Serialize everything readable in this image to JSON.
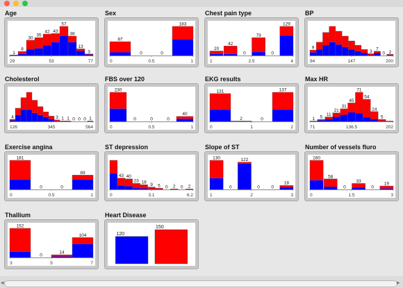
{
  "window": {
    "buttons": [
      {
        "name": "close",
        "color": "#ff5f57"
      },
      {
        "name": "minimize",
        "color": "#febc2e"
      },
      {
        "name": "zoom",
        "color": "#28c840"
      }
    ]
  },
  "colors": {
    "red": "#ff0000",
    "blue": "#0000ff",
    "axis": "#888888",
    "panel": "#c8c8c8"
  },
  "chart_data": [
    {
      "type": "bar",
      "title": "Age",
      "ticks": [
        "29",
        "53",
        "77"
      ],
      "bins": [
        {
          "label": "1",
          "total": 1,
          "blue": 1
        },
        {
          "label": "8",
          "total": 8,
          "blue": 3
        },
        {
          "label": "30",
          "total": 30,
          "blue": 12
        },
        {
          "label": "35",
          "total": 35,
          "blue": 14
        },
        {
          "label": "42",
          "total": 42,
          "blue": 20
        },
        {
          "label": "43",
          "total": 43,
          "blue": 26
        },
        {
          "label": "57",
          "total": 57,
          "blue": 38
        },
        {
          "label": "38",
          "total": 38,
          "blue": 26
        },
        {
          "label": "13",
          "total": 13,
          "blue": 9
        },
        {
          "label": "3",
          "total": 3,
          "blue": 2
        }
      ]
    },
    {
      "type": "bar",
      "title": "Sex",
      "ticks": [
        "0",
        "0.5",
        "1"
      ],
      "bins": [
        {
          "label": "87",
          "total": 87,
          "blue": 20
        },
        {
          "label": "0",
          "total": 0,
          "blue": 0
        },
        {
          "label": "0",
          "total": 0,
          "blue": 0
        },
        {
          "label": "183",
          "total": 183,
          "blue": 100
        }
      ],
      "barWidthFrac": 0.25
    },
    {
      "type": "bar",
      "title": "Chest pain type",
      "ticks": [
        "1",
        "2.5",
        "4"
      ],
      "bins": [
        {
          "label": "20",
          "total": 20,
          "blue": 7
        },
        {
          "label": "42",
          "total": 42,
          "blue": 7
        },
        {
          "label": "0",
          "total": 0,
          "blue": 0
        },
        {
          "label": "79",
          "total": 79,
          "blue": 15
        },
        {
          "label": "0",
          "total": 0,
          "blue": 0
        },
        {
          "label": "129",
          "total": 129,
          "blue": 88
        }
      ],
      "barWidthFrac": 0.16
    },
    {
      "type": "bar",
      "title": "BP",
      "ticks": [
        "94",
        "147",
        "200"
      ],
      "bins": [
        {
          "label": "9",
          "total": 9,
          "blue": 5
        },
        {
          "label": "",
          "total": 22,
          "blue": 10
        },
        {
          "label": "",
          "total": 38,
          "blue": 17
        },
        {
          "label": "",
          "total": 48,
          "blue": 22
        },
        {
          "label": "",
          "total": 40,
          "blue": 18
        },
        {
          "label": "",
          "total": 32,
          "blue": 14
        },
        {
          "label": "",
          "total": 24,
          "blue": 10
        },
        {
          "label": "",
          "total": 17,
          "blue": 7
        },
        {
          "label": "",
          "total": 10,
          "blue": 4
        },
        {
          "label": "3",
          "total": 3,
          "blue": 1
        },
        {
          "label": "7",
          "total": 7,
          "blue": 4
        },
        {
          "label": "0",
          "total": 0,
          "blue": 0
        },
        {
          "label": "2",
          "total": 2,
          "blue": 1
        }
      ]
    },
    {
      "type": "bar",
      "title": "Cholesterol",
      "ticks": [
        "126",
        "345",
        "564"
      ],
      "bins": [
        {
          "label": "4",
          "total": 4,
          "blue": 2
        },
        {
          "label": "",
          "total": 25,
          "blue": 12
        },
        {
          "label": "",
          "total": 45,
          "blue": 22
        },
        {
          "label": "",
          "total": 55,
          "blue": 22
        },
        {
          "label": "",
          "total": 40,
          "blue": 16
        },
        {
          "label": "",
          "total": 28,
          "blue": 12
        },
        {
          "label": "",
          "total": 18,
          "blue": 8
        },
        {
          "label": "",
          "total": 10,
          "blue": 4
        },
        {
          "label": "3",
          "total": 3,
          "blue": 1
        },
        {
          "label": "1",
          "total": 1,
          "blue": 0
        },
        {
          "label": "1",
          "total": 1,
          "blue": 0
        },
        {
          "label": "0",
          "total": 0,
          "blue": 0
        },
        {
          "label": "0",
          "total": 0,
          "blue": 0
        },
        {
          "label": "0",
          "total": 0,
          "blue": 0
        },
        {
          "label": "1",
          "total": 1,
          "blue": 0
        }
      ]
    },
    {
      "type": "bar",
      "title": "FBS over 120",
      "ticks": [
        "0",
        "0.5",
        "1"
      ],
      "bins": [
        {
          "label": "230",
          "total": 230,
          "blue": 100
        },
        {
          "label": "0",
          "total": 0,
          "blue": 0
        },
        {
          "label": "0",
          "total": 0,
          "blue": 0
        },
        {
          "label": "0",
          "total": 0,
          "blue": 0
        },
        {
          "label": "40",
          "total": 40,
          "blue": 20
        }
      ],
      "barWidthFrac": 0.2
    },
    {
      "type": "bar",
      "title": "EKG results",
      "ticks": [
        "0",
        "1",
        "2"
      ],
      "bins": [
        {
          "label": "131",
          "total": 131,
          "blue": 55
        },
        {
          "label": "2",
          "total": 2,
          "blue": 1
        },
        {
          "label": "0",
          "total": 0,
          "blue": 0
        },
        {
          "label": "137",
          "total": 137,
          "blue": 55
        }
      ],
      "barWidthFrac": 0.25
    },
    {
      "type": "bar",
      "title": "Max HR",
      "ticks": [
        "71",
        "136.5",
        "202"
      ],
      "bins": [
        {
          "label": "1",
          "total": 1,
          "blue": 0
        },
        {
          "label": "5",
          "total": 5,
          "blue": 3
        },
        {
          "label": "11",
          "total": 11,
          "blue": 5
        },
        {
          "label": "21",
          "total": 21,
          "blue": 11
        },
        {
          "label": "31",
          "total": 31,
          "blue": 16
        },
        {
          "label": "45",
          "total": 45,
          "blue": 22
        },
        {
          "label": "71",
          "total": 71,
          "blue": 20
        },
        {
          "label": "54",
          "total": 54,
          "blue": 10
        },
        {
          "label": "24",
          "total": 24,
          "blue": 5
        },
        {
          "label": "5",
          "total": 5,
          "blue": 1
        },
        {
          "label": "",
          "total": 1,
          "blue": 0
        }
      ]
    },
    {
      "type": "bar",
      "title": "Exercise angina",
      "ticks": [
        "0",
        "0.5",
        "1"
      ],
      "bins": [
        {
          "label": "181",
          "total": 181,
          "blue": 60
        },
        {
          "label": "0",
          "total": 0,
          "blue": 0
        },
        {
          "label": "0",
          "total": 0,
          "blue": 0
        },
        {
          "label": "89",
          "total": 89,
          "blue": 60
        }
      ],
      "barWidthFrac": 0.25
    },
    {
      "type": "bar",
      "title": "ST depression",
      "ticks": [
        "0",
        "3.1",
        "6.2"
      ],
      "bins": [
        {
          "label": "",
          "total": 110,
          "blue": 60
        },
        {
          "label": "43",
          "total": 43,
          "blue": 15
        },
        {
          "label": "40",
          "total": 40,
          "blue": 12
        },
        {
          "label": "23",
          "total": 23,
          "blue": 5
        },
        {
          "label": "18",
          "total": 18,
          "blue": 4
        },
        {
          "label": "9",
          "total": 9,
          "blue": 2
        },
        {
          "label": "5",
          "total": 5,
          "blue": 1
        },
        {
          "label": "0",
          "total": 0,
          "blue": 0
        },
        {
          "label": "2",
          "total": 2,
          "blue": 0
        },
        {
          "label": "0",
          "total": 0,
          "blue": 0
        },
        {
          "label": "2",
          "total": 2,
          "blue": 0
        }
      ]
    },
    {
      "type": "bar",
      "title": "Slope of ST",
      "ticks": [
        "1",
        "2",
        "3"
      ],
      "bins": [
        {
          "label": "130",
          "total": 130,
          "blue": 50
        },
        {
          "label": "0",
          "total": 0,
          "blue": 0
        },
        {
          "label": "122",
          "total": 122,
          "blue": 115
        },
        {
          "label": "0",
          "total": 0,
          "blue": 0
        },
        {
          "label": "0",
          "total": 0,
          "blue": 0
        },
        {
          "label": "18",
          "total": 18,
          "blue": 10
        }
      ],
      "barWidthFrac": 0.16
    },
    {
      "type": "bar",
      "title": "Number of vessels fluro",
      "ticks": [
        "0",
        "1.5",
        "3"
      ],
      "bins": [
        {
          "label": "160",
          "total": 160,
          "blue": 50
        },
        {
          "label": "58",
          "total": 58,
          "blue": 15
        },
        {
          "label": "0",
          "total": 0,
          "blue": 0
        },
        {
          "label": "33",
          "total": 33,
          "blue": 10
        },
        {
          "label": "0",
          "total": 0,
          "blue": 0
        },
        {
          "label": "19",
          "total": 19,
          "blue": 5
        }
      ],
      "barWidthFrac": 0.16
    },
    {
      "type": "bar",
      "title": "Thallium",
      "ticks": [
        "3",
        "5",
        "7"
      ],
      "bins": [
        {
          "label": "152",
          "total": 152,
          "blue": 30
        },
        {
          "label": "0",
          "total": 0,
          "blue": 0
        },
        {
          "label": "14",
          "total": 14,
          "blue": 5
        },
        {
          "label": "104",
          "total": 104,
          "blue": 70
        }
      ],
      "barWidthFrac": 0.25
    },
    {
      "type": "bar",
      "title": "Heart Disease",
      "ticks": [],
      "bins": [
        {
          "label": "120",
          "total": 120,
          "blue": 120,
          "color": "blue"
        },
        {
          "label": "150",
          "total": 150,
          "blue": 0,
          "color": "red"
        }
      ],
      "mode": "class"
    }
  ]
}
